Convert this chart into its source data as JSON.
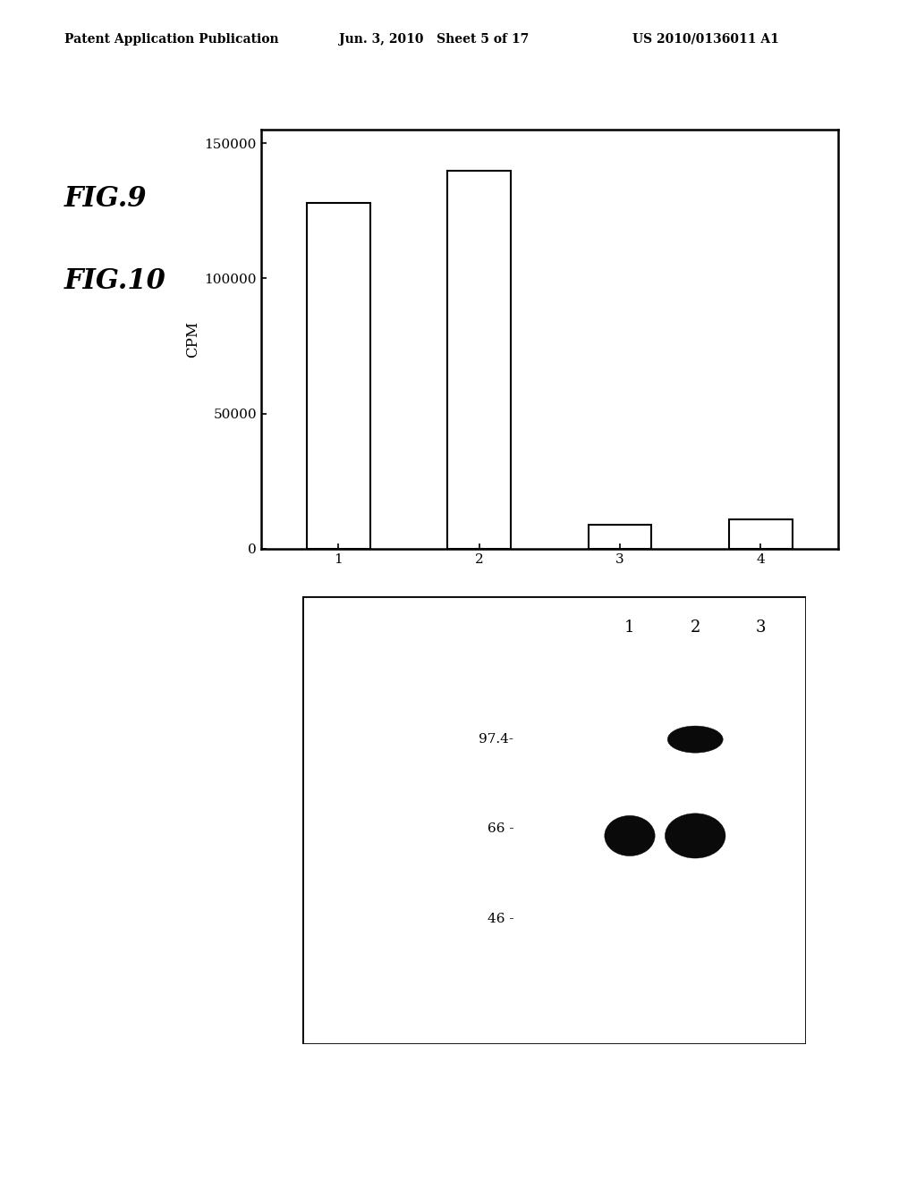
{
  "header_left": "Patent Application Publication",
  "header_mid": "Jun. 3, 2010   Sheet 5 of 17",
  "header_right": "US 2010/0136011 A1",
  "fig9_label": "FIG.9",
  "fig9_ylabel": "CPM",
  "fig9_xticks": [
    1,
    2,
    3,
    4
  ],
  "fig9_yticks": [
    0,
    50000,
    100000,
    150000
  ],
  "fig9_ytick_labels": [
    "0",
    "50000",
    "100000",
    "150000"
  ],
  "fig9_values": [
    128000,
    140000,
    9000,
    11000
  ],
  "fig9_ylim": [
    0,
    155000
  ],
  "fig10_label": "FIG.10",
  "fig10_lane_labels": [
    "1",
    "2",
    "3"
  ],
  "fig10_mw_labels": [
    "97.4-",
    "66 -",
    "46 -"
  ],
  "background_color": "#ffffff",
  "bar_color": "#ffffff",
  "bar_edge_color": "#000000",
  "text_color": "#000000",
  "header_fontsize": 10,
  "fig_label_fontsize": 22,
  "axis_fontsize": 11,
  "ylabel_fontsize": 12
}
